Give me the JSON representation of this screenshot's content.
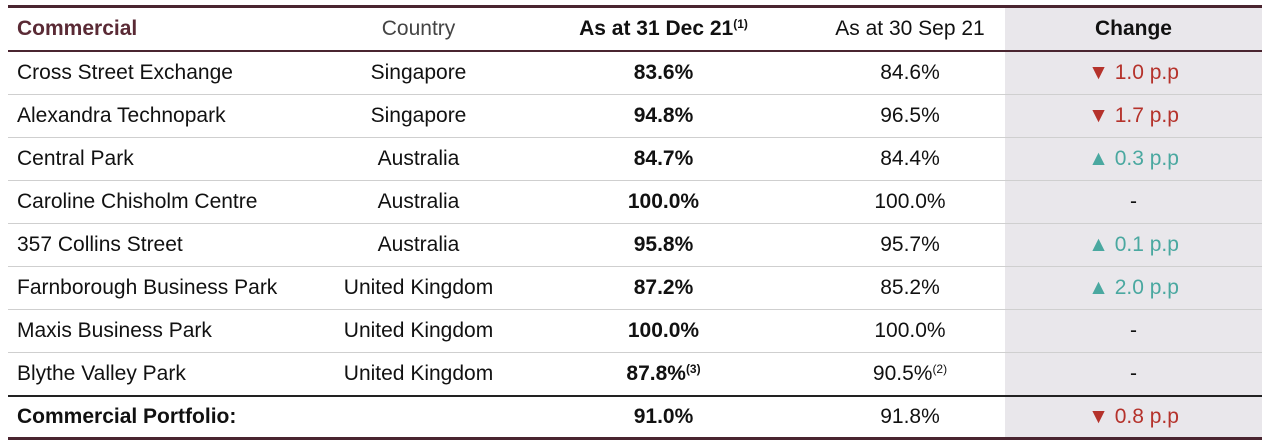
{
  "table": {
    "header": {
      "name": "Commercial",
      "country": "Country",
      "dec": "As at 31 Dec 21",
      "dec_note": "(1)",
      "sep": "As at 30 Sep 21",
      "change": "Change"
    },
    "rows": [
      {
        "name": "Cross Street Exchange",
        "country": "Singapore",
        "dec": "83.6%",
        "sep": "84.6%",
        "change": "▼ 1.0 p.p"
      },
      {
        "name": "Alexandra Technopark",
        "country": "Singapore",
        "dec": "94.8%",
        "sep": "96.5%",
        "change": "▼ 1.7 p.p"
      },
      {
        "name": "Central Park",
        "country": "Australia",
        "dec": "84.7%",
        "sep": "84.4%",
        "change": "▲ 0.3 p.p"
      },
      {
        "name": "Caroline Chisholm Centre",
        "country": "Australia",
        "dec": "100.0%",
        "sep": "100.0%",
        "change": "-"
      },
      {
        "name": "357 Collins Street",
        "country": "Australia",
        "dec": "95.8%",
        "sep": "95.7%",
        "change": "▲ 0.1 p.p"
      },
      {
        "name": "Farnborough Business Park",
        "country": "United Kingdom",
        "dec": "87.2%",
        "sep": "85.2%",
        "change": "▲ 2.0 p.p"
      },
      {
        "name": "Maxis Business Park",
        "country": "United Kingdom",
        "dec": "100.0%",
        "sep": "100.0%",
        "change": "-"
      },
      {
        "name": "Blythe Valley Park",
        "country": "United Kingdom",
        "dec": "87.8%",
        "dec_note": "(3)",
        "sep": "90.5%",
        "sep_note": "(2)",
        "change": "-"
      }
    ],
    "total": {
      "name": "Commercial Portfolio:",
      "dec": "91.0%",
      "sep": "91.8%",
      "change": "▼ 0.8 p.p"
    }
  }
}
